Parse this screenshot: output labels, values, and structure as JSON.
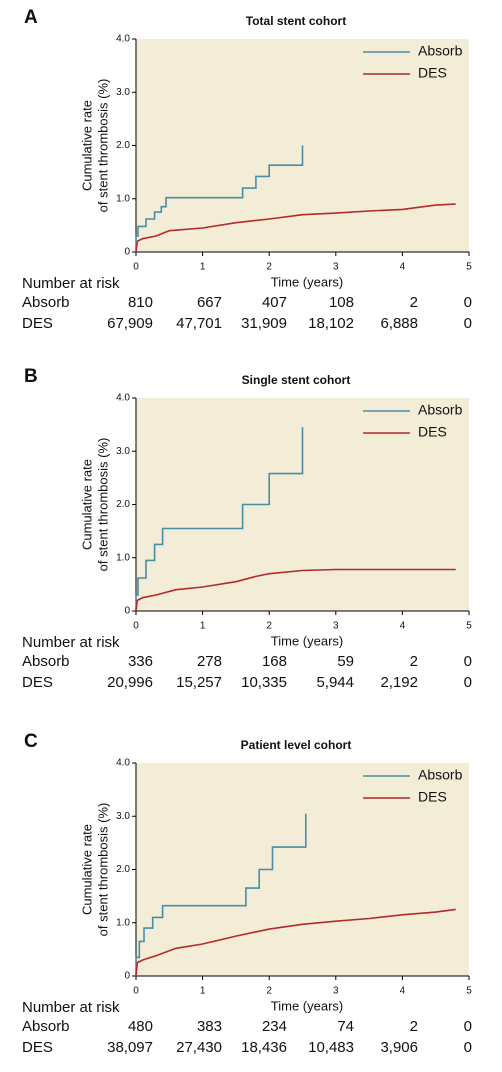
{
  "chart_data": [
    {
      "type": "line",
      "panel": "A",
      "title": "Total stent cohort",
      "ylabel": [
        "Cumulative rate",
        "of stent thrombosis (%)"
      ],
      "xlabel": "Time (years)",
      "xlim": [
        0,
        5
      ],
      "xticks": [
        0,
        1,
        2,
        3,
        4,
        5
      ],
      "ylim": [
        0,
        4
      ],
      "yticks": [
        0,
        {
          "value": 1,
          "label": "1.0"
        },
        {
          "value": 2,
          "label": "2.0"
        },
        {
          "value": 3,
          "label": "3.0"
        },
        {
          "value": 4,
          "label": "4.0"
        }
      ],
      "legend": "upper right",
      "series": [
        {
          "name": "Absorb",
          "color": "#4a8ea6",
          "x": [
            0,
            0,
            0.03,
            0.03,
            0.15,
            0.15,
            0.28,
            0.28,
            0.38,
            0.38,
            0.45,
            0.45,
            1.6,
            1.6,
            1.8,
            1.8,
            2.0,
            2.0,
            2.5,
            2.5
          ],
          "values": [
            0,
            0.3,
            0.3,
            0.48,
            0.48,
            0.62,
            0.62,
            0.75,
            0.75,
            0.85,
            0.85,
            1.02,
            1.02,
            1.2,
            1.2,
            1.42,
            1.42,
            1.63,
            1.63,
            2.0
          ]
        },
        {
          "name": "DES",
          "color": "#b22b2b",
          "x": [
            0,
            0.02,
            0.1,
            0.3,
            0.5,
            1,
            1.5,
            2,
            2.5,
            3,
            3.5,
            4,
            4.5,
            4.8
          ],
          "values": [
            0,
            0.2,
            0.25,
            0.3,
            0.4,
            0.45,
            0.55,
            0.62,
            0.7,
            0.73,
            0.77,
            0.8,
            0.88,
            0.9
          ]
        }
      ],
      "risk_table": {
        "title": "Number at risk",
        "rows": [
          {
            "name": "Absorb",
            "values": [
              810,
              667,
              407,
              108,
              2,
              0
            ]
          },
          {
            "name": "DES",
            "values": [
              67909,
              47701,
              31909,
              18102,
              6888,
              0
            ],
            "value_labels": [
              "67,909",
              "47,701",
              "31,909",
              "18,102",
              "6,888",
              "0"
            ]
          }
        ]
      }
    },
    {
      "type": "line",
      "panel": "B",
      "title": "Single stent cohort",
      "ylabel": [
        "Cumulative rate",
        "of stent thrombosis (%)"
      ],
      "xlabel": "Time (years)",
      "xlim": [
        0,
        5
      ],
      "xticks": [
        0,
        1,
        2,
        3,
        4,
        5
      ],
      "ylim": [
        0,
        4
      ],
      "yticks": [
        0,
        {
          "value": 1,
          "label": "1.0"
        },
        {
          "value": 2,
          "label": "2.0"
        },
        {
          "value": 3,
          "label": "3.0"
        },
        {
          "value": 4,
          "label": "4.0"
        }
      ],
      "legend": "upper right",
      "series": [
        {
          "name": "Absorb",
          "color": "#4a8ea6",
          "x": [
            0,
            0,
            0.03,
            0.03,
            0.15,
            0.15,
            0.28,
            0.28,
            0.4,
            0.4,
            1.6,
            1.6,
            2.0,
            2.0,
            2.5,
            2.5
          ],
          "values": [
            0,
            0.3,
            0.3,
            0.62,
            0.62,
            0.95,
            0.95,
            1.25,
            1.25,
            1.55,
            1.55,
            2.0,
            2.0,
            2.58,
            2.58,
            3.45
          ]
        },
        {
          "name": "DES",
          "color": "#b22b2b",
          "x": [
            0,
            0.02,
            0.1,
            0.3,
            0.6,
            1,
            1.5,
            1.8,
            2,
            2.5,
            3,
            4,
            4.8
          ],
          "values": [
            0,
            0.2,
            0.25,
            0.3,
            0.4,
            0.45,
            0.55,
            0.65,
            0.7,
            0.76,
            0.78,
            0.78,
            0.78
          ]
        }
      ],
      "risk_table": {
        "title": "Number at risk",
        "rows": [
          {
            "name": "Absorb",
            "values": [
              336,
              278,
              168,
              59,
              2,
              0
            ]
          },
          {
            "name": "DES",
            "values": [
              20996,
              15257,
              10335,
              5944,
              2192,
              0
            ],
            "value_labels": [
              "20,996",
              "15,257",
              "10,335",
              "5,944",
              "2,192",
              "0"
            ]
          }
        ]
      }
    },
    {
      "type": "line",
      "panel": "C",
      "title": "Patient level cohort",
      "ylabel": [
        "Cumulative rate",
        "of stent thrombosis (%)"
      ],
      "xlabel": "Time (years)",
      "xlim": [
        0,
        5
      ],
      "xticks": [
        0,
        1,
        2,
        3,
        4,
        5
      ],
      "ylim": [
        0,
        4
      ],
      "yticks": [
        0,
        {
          "value": 1,
          "label": "1.0"
        },
        {
          "value": 2,
          "label": "2.0"
        },
        {
          "value": 3,
          "label": "3.0"
        },
        {
          "value": 4,
          "label": "4.0"
        }
      ],
      "legend": "upper right",
      "series": [
        {
          "name": "Absorb",
          "color": "#4a8ea6",
          "x": [
            0,
            0,
            0.05,
            0.05,
            0.12,
            0.12,
            0.25,
            0.25,
            0.4,
            0.4,
            1.65,
            1.65,
            1.85,
            1.85,
            2.05,
            2.05,
            2.55,
            2.55
          ],
          "values": [
            0,
            0.35,
            0.35,
            0.65,
            0.65,
            0.9,
            0.9,
            1.1,
            1.1,
            1.32,
            1.32,
            1.65,
            1.65,
            2.0,
            2.0,
            2.42,
            2.42,
            3.05
          ]
        },
        {
          "name": "DES",
          "color": "#b22b2b",
          "x": [
            0,
            0.02,
            0.1,
            0.3,
            0.6,
            1,
            1.5,
            2,
            2.5,
            3,
            3.5,
            4,
            4.5,
            4.8
          ],
          "values": [
            0,
            0.25,
            0.3,
            0.38,
            0.52,
            0.6,
            0.75,
            0.88,
            0.97,
            1.03,
            1.08,
            1.15,
            1.2,
            1.25
          ]
        }
      ],
      "risk_table": {
        "title": "Number at risk",
        "rows": [
          {
            "name": "Absorb",
            "values": [
              480,
              383,
              234,
              74,
              2,
              0
            ]
          },
          {
            "name": "DES",
            "values": [
              38097,
              27430,
              18436,
              10483,
              3906,
              0
            ],
            "value_labels": [
              "38,097",
              "27,430",
              "18,436",
              "10,483",
              "3,906",
              "0"
            ]
          }
        ]
      }
    }
  ]
}
